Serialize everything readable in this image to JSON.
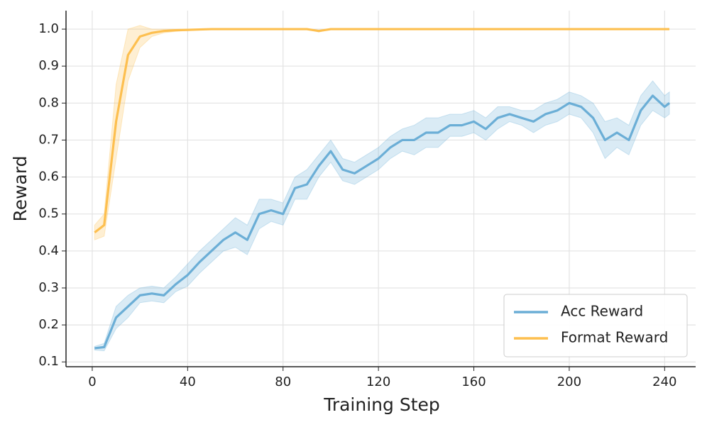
{
  "chart_data": {
    "type": "line",
    "xlabel": "Training Step",
    "ylabel": "Reward",
    "x": [
      1,
      5,
      10,
      15,
      20,
      25,
      30,
      35,
      40,
      45,
      50,
      55,
      60,
      65,
      70,
      75,
      80,
      85,
      90,
      95,
      100,
      105,
      110,
      115,
      120,
      125,
      130,
      135,
      140,
      145,
      150,
      155,
      160,
      165,
      170,
      175,
      180,
      185,
      190,
      195,
      200,
      205,
      210,
      215,
      220,
      225,
      230,
      235,
      240,
      242
    ],
    "series": [
      {
        "name": "Acc Reward",
        "color": "#6baed6",
        "values": [
          0.137,
          0.14,
          0.22,
          0.25,
          0.28,
          0.285,
          0.28,
          0.31,
          0.335,
          0.37,
          0.4,
          0.43,
          0.45,
          0.43,
          0.5,
          0.51,
          0.5,
          0.57,
          0.58,
          0.63,
          0.67,
          0.62,
          0.61,
          0.63,
          0.65,
          0.68,
          0.7,
          0.7,
          0.72,
          0.72,
          0.74,
          0.74,
          0.75,
          0.73,
          0.76,
          0.77,
          0.76,
          0.75,
          0.77,
          0.78,
          0.8,
          0.79,
          0.76,
          0.7,
          0.72,
          0.7,
          0.78,
          0.82,
          0.79,
          0.8
        ],
        "error": [
          0.005,
          0.01,
          0.03,
          0.03,
          0.02,
          0.02,
          0.02,
          0.02,
          0.03,
          0.03,
          0.03,
          0.03,
          0.04,
          0.04,
          0.04,
          0.03,
          0.03,
          0.03,
          0.04,
          0.03,
          0.03,
          0.03,
          0.03,
          0.03,
          0.03,
          0.03,
          0.03,
          0.04,
          0.04,
          0.04,
          0.03,
          0.03,
          0.03,
          0.03,
          0.03,
          0.02,
          0.02,
          0.03,
          0.03,
          0.03,
          0.03,
          0.03,
          0.04,
          0.05,
          0.04,
          0.04,
          0.04,
          0.04,
          0.03,
          0.03
        ]
      },
      {
        "name": "Format Reward",
        "color": "#fdbf4f",
        "values": [
          0.45,
          0.47,
          0.75,
          0.93,
          0.98,
          0.99,
          0.995,
          0.997,
          0.998,
          0.999,
          1.0,
          1.0,
          1.0,
          1.0,
          1.0,
          1.0,
          1.0,
          1.0,
          1.0,
          0.995,
          1.0,
          1.0,
          1.0,
          1.0,
          1.0,
          1.0,
          1.0,
          1.0,
          1.0,
          1.0,
          1.0,
          1.0,
          1.0,
          1.0,
          1.0,
          1.0,
          1.0,
          1.0,
          1.0,
          1.0,
          1.0,
          1.0,
          1.0,
          1.0,
          1.0,
          1.0,
          1.0,
          1.0,
          1.0,
          1.0
        ],
        "error": [
          0.02,
          0.03,
          0.1,
          0.07,
          0.03,
          0.01,
          0.005,
          0.003,
          0.002,
          0.001,
          0,
          0,
          0,
          0,
          0,
          0,
          0,
          0,
          0,
          0.003,
          0,
          0,
          0,
          0,
          0,
          0,
          0,
          0,
          0,
          0,
          0,
          0,
          0,
          0,
          0,
          0,
          0,
          0,
          0,
          0,
          0,
          0,
          0,
          0,
          0,
          0,
          0,
          0,
          0,
          0
        ]
      }
    ],
    "xlim": [
      -11,
      253
    ],
    "ylim": [
      0.087,
      1.05
    ],
    "xticks": [
      0,
      40,
      80,
      120,
      160,
      200,
      240
    ],
    "yticks": [
      {
        "value": 0.1,
        "label": "0.1"
      },
      {
        "value": 0.2,
        "label": "0.2"
      },
      {
        "value": 0.3,
        "label": "0.3"
      },
      {
        "value": 0.4,
        "label": "0.4"
      },
      {
        "value": 0.5,
        "label": "0.5"
      },
      {
        "value": 0.6,
        "label": "0.6"
      },
      {
        "value": 0.7,
        "label": "0.7"
      },
      {
        "value": 0.8,
        "label": "0.8"
      },
      {
        "value": 0.9,
        "label": "0.9"
      },
      {
        "value": 1.0,
        "label": "1.0"
      }
    ],
    "grid": true,
    "legend": "lower right"
  }
}
